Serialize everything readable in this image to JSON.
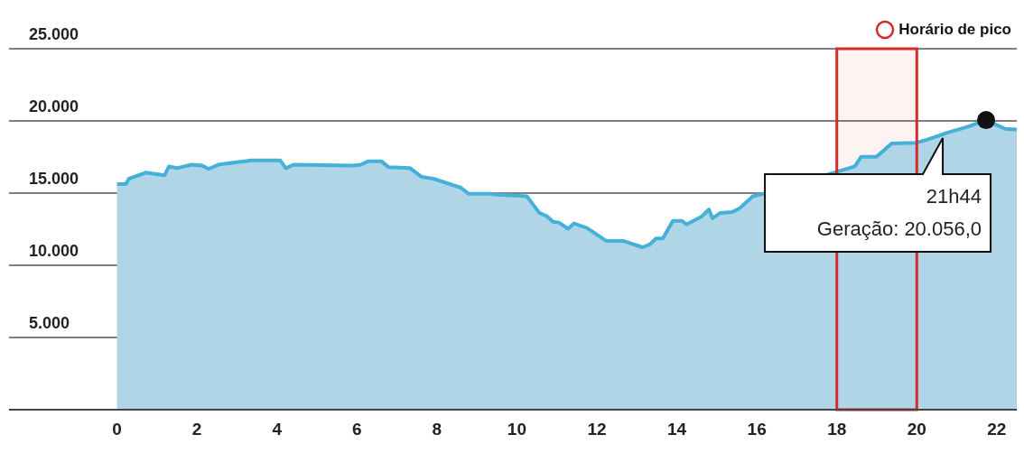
{
  "chart_data": {
    "type": "area",
    "x": [
      0,
      0.22,
      0.3,
      0.72,
      1.19,
      1.3,
      1.5,
      1.86,
      2.13,
      2.29,
      2.53,
      3.36,
      4.08,
      4.22,
      4.42,
      5.9,
      6.1,
      6.28,
      6.61,
      6.79,
      7.33,
      7.62,
      7.91,
      8.59,
      8.79,
      9.35,
      9.44,
      10.25,
      10.56,
      10.76,
      10.9,
      11.05,
      11.28,
      11.43,
      11.75,
      12.24,
      12.67,
      13.14,
      13.32,
      13.48,
      13.65,
      13.9,
      14.13,
      14.24,
      14.62,
      14.8,
      14.89,
      15.09,
      15.38,
      15.56,
      15.9,
      16.17,
      18.45,
      18.61,
      18.99,
      19.37,
      19.98,
      20.22,
      20.74,
      21.26,
      21.733,
      22.2,
      22.5
    ],
    "series": [
      {
        "color": "#45b0d8",
        "values": [
          15630,
          15630,
          16000,
          16420,
          16240,
          16850,
          16730,
          16970,
          16910,
          16670,
          16970,
          17270,
          17270,
          16730,
          16970,
          16910,
          16970,
          17210,
          17210,
          16790,
          16730,
          16120,
          16000,
          15390,
          14960,
          14960,
          14900,
          14780,
          13630,
          13380,
          13020,
          12960,
          12530,
          12900,
          12590,
          11680,
          11680,
          11250,
          11440,
          11860,
          11860,
          13080,
          13080,
          12830,
          13380,
          13870,
          13260,
          13630,
          13690,
          13930,
          14780,
          14960,
          16850,
          17520,
          17520,
          18430,
          18490,
          18670,
          19160,
          19590,
          20056,
          19460,
          19400
        ]
      }
    ],
    "xlim": [
      -2.7,
      22.5
    ],
    "xticks": [
      0,
      2,
      4,
      6,
      8,
      10,
      12,
      14,
      16,
      18,
      20,
      22
    ],
    "ylim": [
      0,
      25000
    ],
    "yticks": [
      {
        "value": 0,
        "label": null
      },
      {
        "value": 5000,
        "label": "5.000"
      },
      {
        "value": 10000,
        "label": "10.000"
      },
      {
        "value": 15000,
        "label": "15.000"
      },
      {
        "value": 20000,
        "label": "20.000"
      },
      {
        "value": 25000,
        "label": "25.000"
      }
    ],
    "grid": "y",
    "legend": "top right",
    "bands": [
      {
        "axis": "x",
        "from": 18,
        "to": 20,
        "label": "Horário de pico",
        "color": "#d62b2b"
      }
    ],
    "annotations": [
      "21h44\nGeração: 20.056,0"
    ]
  }
}
